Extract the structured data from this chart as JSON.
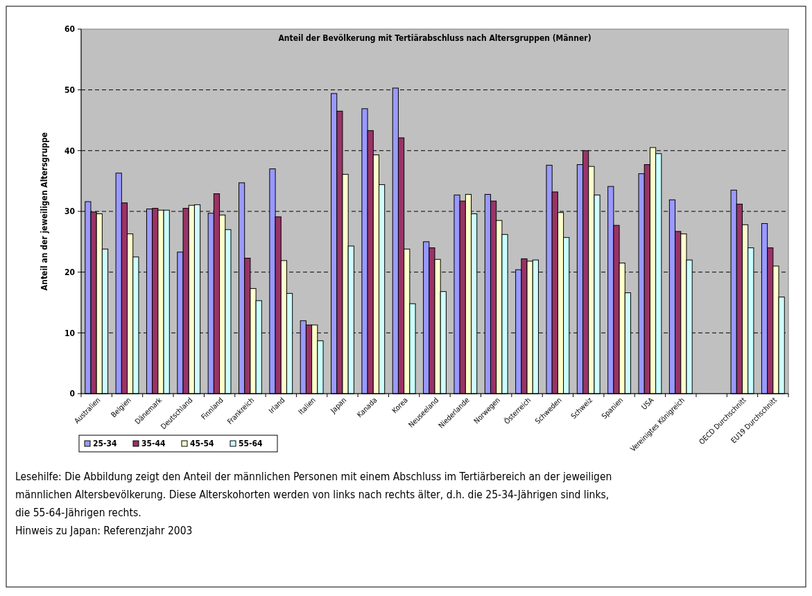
{
  "chart_data": {
    "type": "bar",
    "title": "Anteil der Bevölkerung mit Tertiärabschluss nach Altersgruppen (Männer)",
    "ylabel": "Anteil an der jeweiligen Altersgruppe",
    "categories": [
      "Australien",
      "Belgien",
      "Dänemark",
      "Deutschland",
      "Finnland",
      "Frankreich",
      "Irland",
      "Italien",
      "Japan",
      "Kanada",
      "Korea",
      "Neuseeland",
      "Niederlande",
      "Norwegen",
      "Österreich",
      "Schweden",
      "Schweiz",
      "Spanien",
      "USA",
      "Vereinigtes Königreich",
      null,
      "OECD Durchschnitt",
      "EU19  Durchschnitt"
    ],
    "series": [
      {
        "name": "25-34",
        "color": "#9999ff",
        "values": [
          31.6,
          36.3,
          30.4,
          23.3,
          29.7,
          34.7,
          37.0,
          12.0,
          49.4,
          46.9,
          50.3,
          25.0,
          32.7,
          32.8,
          20.4,
          37.6,
          37.7,
          34.1,
          36.2,
          31.9,
          null,
          33.5,
          28.0
        ]
      },
      {
        "name": "35-44",
        "color": "#993366",
        "values": [
          29.9,
          31.4,
          30.5,
          30.5,
          32.9,
          22.3,
          29.1,
          11.3,
          46.5,
          43.3,
          42.1,
          24.0,
          31.7,
          31.7,
          22.2,
          33.2,
          40.0,
          27.7,
          37.7,
          26.7,
          null,
          31.2,
          24.0
        ]
      },
      {
        "name": "45-54",
        "color": "#ffffcc",
        "values": [
          29.6,
          26.3,
          30.2,
          31.0,
          29.4,
          17.3,
          21.9,
          11.3,
          36.1,
          39.3,
          23.8,
          22.1,
          32.8,
          28.5,
          21.8,
          29.8,
          37.4,
          21.5,
          40.5,
          26.3,
          null,
          27.8,
          21.0
        ]
      },
      {
        "name": "55-64",
        "color": "#ccffff",
        "values": [
          23.8,
          22.5,
          30.2,
          31.1,
          27.0,
          15.3,
          16.5,
          8.7,
          24.3,
          34.4,
          14.8,
          16.8,
          29.6,
          26.2,
          22.0,
          25.7,
          32.7,
          16.6,
          39.5,
          22.0,
          null,
          24.0,
          15.9
        ]
      }
    ],
    "ylim": [
      0,
      60
    ],
    "yticks": [
      0,
      10,
      20,
      30,
      40,
      50,
      60
    ],
    "grid": "y",
    "legend": "bottom left",
    "annotations": [
      "Lesehilfe: Die Abbildung zeigt den Anteil der männlichen Personen mit einem Abschluss im Tertiärbereich an der jeweiligen männlichen Altersbevölkerung. Diese Alterskohorten werden von links nach rechts älter, d.h. die 25-34-Jährigen sind links, die 55-64-Jährigen rechts.",
      "Hinweis zu Japan: Referenzjahr 2003"
    ]
  }
}
